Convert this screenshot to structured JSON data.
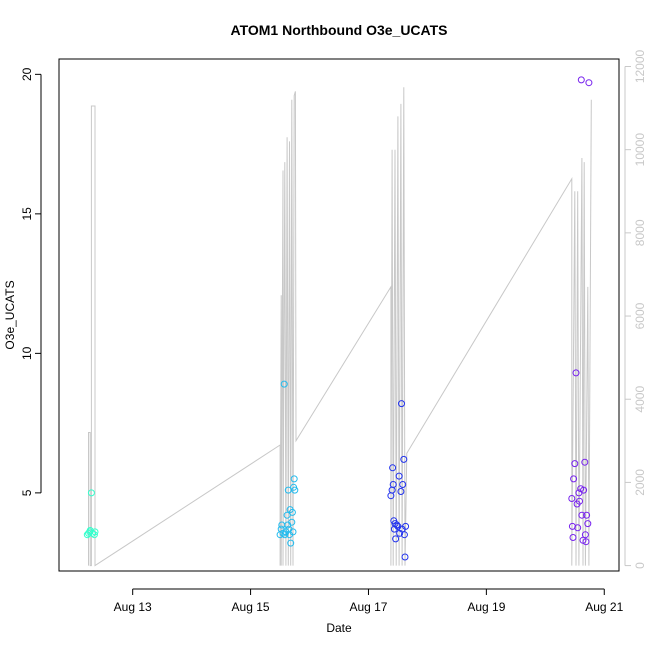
{
  "chart_data": {
    "type": "scatter",
    "title": "ATOM1 Northbound O3e_UCATS",
    "xlabel": "Date",
    "ylabel": "O3e_UCATS",
    "x_tick_labels": [
      "Aug 13",
      "Aug 15",
      "Aug 17",
      "Aug 19",
      "Aug 21"
    ],
    "x_ticks_days": [
      13,
      15,
      17,
      19,
      21
    ],
    "xlim_days": [
      11.75,
      21.25
    ],
    "y_ticks": [
      5,
      10,
      15,
      20
    ],
    "ylim": [
      2.2,
      20.55
    ],
    "y2_ticks": [
      0,
      2000,
      4000,
      6000,
      8000,
      10000,
      12000
    ],
    "y2lim": [
      -130,
      12180
    ],
    "colors": {
      "altitude_line": "#c8c8c8",
      "right_axis": "#c8c8c8",
      "flight1_points": "#33ffcc",
      "flight2_points": "#22bbee",
      "flight3_points": "#2233ee",
      "flight4_points": "#7722ee"
    },
    "secondary_line": {
      "description_axis": "right",
      "points": [
        [
          12.25,
          0
        ],
        [
          12.25,
          3200
        ],
        [
          12.28,
          3200
        ],
        [
          12.28,
          0
        ],
        [
          12.3,
          0
        ],
        [
          12.3,
          11050
        ],
        [
          12.36,
          11050
        ],
        [
          12.36,
          0
        ],
        [
          15.5,
          2900
        ],
        [
          15.5,
          0
        ],
        [
          15.52,
          6500
        ],
        [
          15.52,
          0
        ],
        [
          15.55,
          9500
        ],
        [
          15.55,
          0
        ],
        [
          15.58,
          9700
        ],
        [
          15.6,
          0
        ],
        [
          15.62,
          10300
        ],
        [
          15.64,
          0
        ],
        [
          15.66,
          10200
        ],
        [
          15.68,
          0
        ],
        [
          15.7,
          11200
        ],
        [
          15.72,
          0
        ],
        [
          15.74,
          11300
        ],
        [
          15.76,
          11400
        ],
        [
          15.77,
          3000
        ],
        [
          17.38,
          6700
        ],
        [
          17.38,
          0
        ],
        [
          17.4,
          10000
        ],
        [
          17.42,
          0
        ],
        [
          17.45,
          10000
        ],
        [
          17.47,
          0
        ],
        [
          17.5,
          10800
        ],
        [
          17.52,
          0
        ],
        [
          17.55,
          11100
        ],
        [
          17.57,
          0
        ],
        [
          17.6,
          11500
        ],
        [
          17.62,
          0
        ],
        [
          17.65,
          2700
        ],
        [
          20.45,
          9300
        ],
        [
          20.45,
          0
        ],
        [
          20.5,
          9000
        ],
        [
          20.52,
          0
        ],
        [
          20.55,
          9000
        ],
        [
          20.57,
          0
        ],
        [
          20.62,
          9800
        ],
        [
          20.64,
          0
        ],
        [
          20.66,
          9700
        ],
        [
          20.68,
          0
        ],
        [
          20.72,
          6700
        ],
        [
          20.74,
          0
        ],
        [
          20.78,
          11200
        ]
      ]
    },
    "series": [
      {
        "points": [
          [
            12.23,
            3.5
          ],
          [
            12.25,
            3.55
          ],
          [
            12.27,
            3.6
          ],
          [
            12.28,
            3.65
          ],
          [
            12.3,
            5.0
          ],
          [
            12.32,
            3.55
          ],
          [
            12.35,
            3.5
          ],
          [
            12.36,
            3.6
          ]
        ]
      },
      {
        "points": [
          [
            15.5,
            3.5
          ],
          [
            15.52,
            3.7
          ],
          [
            15.53,
            3.85
          ],
          [
            15.55,
            3.55
          ],
          [
            15.57,
            8.9
          ],
          [
            15.58,
            3.5
          ],
          [
            15.6,
            3.6
          ],
          [
            15.62,
            4.2
          ],
          [
            15.63,
            3.85
          ],
          [
            15.64,
            5.1
          ],
          [
            15.65,
            3.7
          ],
          [
            15.66,
            3.5
          ],
          [
            15.67,
            4.4
          ],
          [
            15.68,
            3.2
          ],
          [
            15.7,
            3.95
          ],
          [
            15.71,
            4.3
          ],
          [
            15.73,
            5.2
          ],
          [
            15.74,
            5.5
          ],
          [
            15.75,
            5.1
          ],
          [
            15.72,
            3.6
          ]
        ]
      },
      {
        "points": [
          [
            17.38,
            4.9
          ],
          [
            17.4,
            5.1
          ],
          [
            17.41,
            5.9
          ],
          [
            17.42,
            5.3
          ],
          [
            17.43,
            4.0
          ],
          [
            17.44,
            3.7
          ],
          [
            17.45,
            3.9
          ],
          [
            17.46,
            3.35
          ],
          [
            17.48,
            3.85
          ],
          [
            17.5,
            3.8
          ],
          [
            17.52,
            5.6
          ],
          [
            17.53,
            3.55
          ],
          [
            17.55,
            5.05
          ],
          [
            17.56,
            8.2
          ],
          [
            17.57,
            3.7
          ],
          [
            17.58,
            5.3
          ],
          [
            17.6,
            6.2
          ],
          [
            17.61,
            3.5
          ],
          [
            17.62,
            2.7
          ],
          [
            17.63,
            3.8
          ]
        ]
      },
      {
        "points": [
          [
            20.45,
            4.8
          ],
          [
            20.46,
            3.8
          ],
          [
            20.47,
            3.4
          ],
          [
            20.48,
            5.5
          ],
          [
            20.5,
            6.05
          ],
          [
            20.52,
            9.3
          ],
          [
            20.54,
            4.6
          ],
          [
            20.55,
            3.75
          ],
          [
            20.57,
            5.0
          ],
          [
            20.58,
            4.7
          ],
          [
            20.6,
            5.15
          ],
          [
            20.61,
            19.8
          ],
          [
            20.62,
            4.2
          ],
          [
            20.64,
            3.3
          ],
          [
            20.65,
            5.1
          ],
          [
            20.67,
            6.1
          ],
          [
            20.68,
            3.5
          ],
          [
            20.69,
            3.25
          ],
          [
            20.7,
            4.2
          ],
          [
            20.72,
            3.9
          ],
          [
            20.74,
            19.7
          ]
        ]
      }
    ]
  }
}
